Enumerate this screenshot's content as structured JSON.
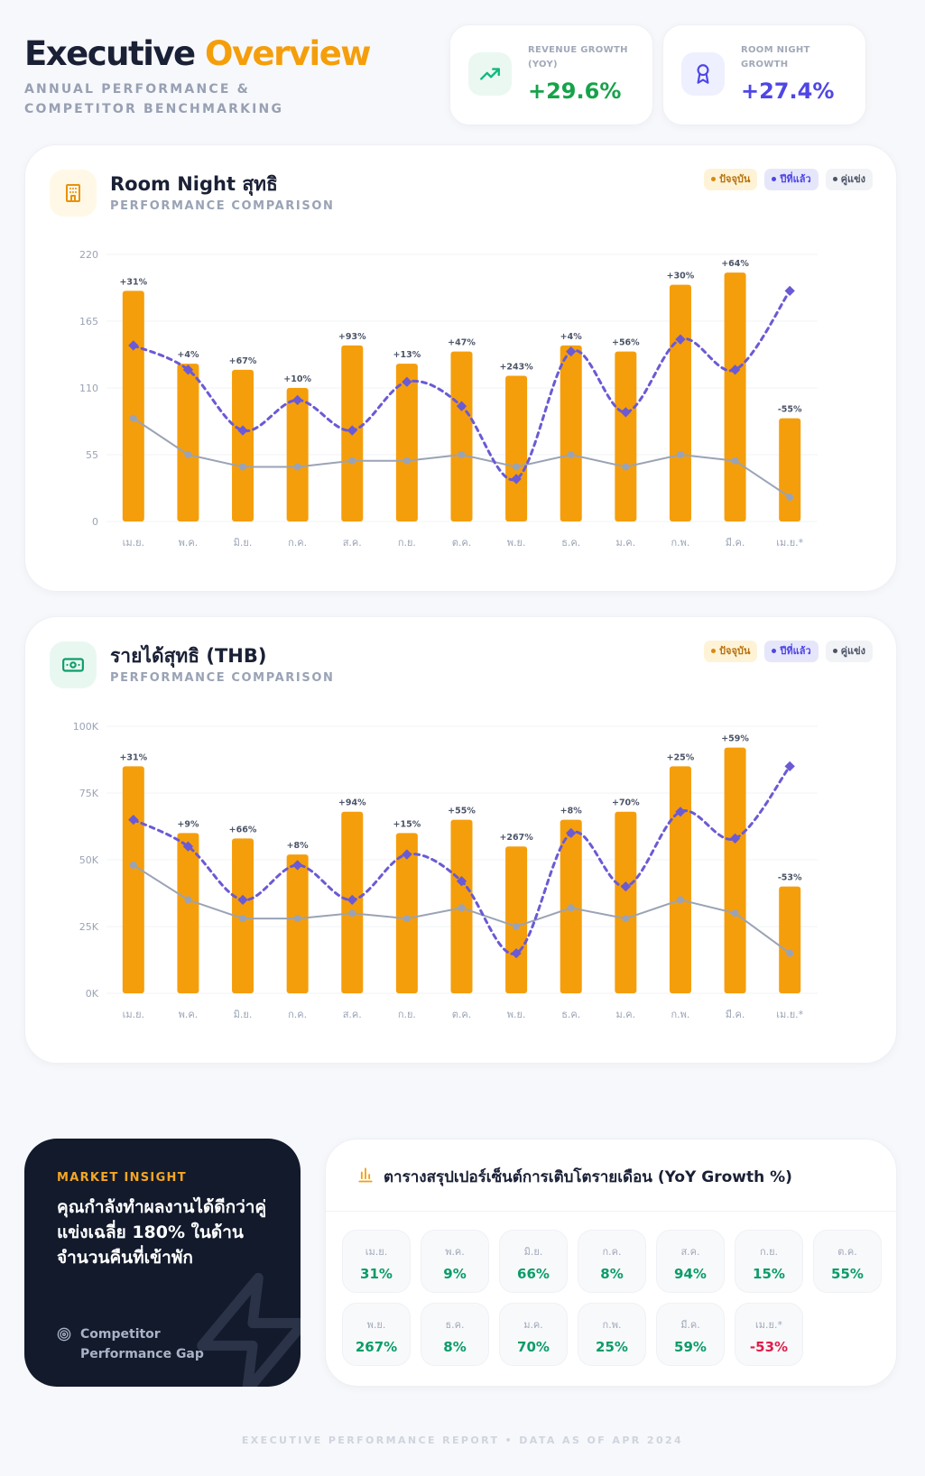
{
  "header": {
    "title_main": "Executive",
    "title_accent": "Overview",
    "subtitle": "ANNUAL PERFORMANCE & COMPETITOR BENCHMARKING"
  },
  "kpis": [
    {
      "label": "REVENUE GROWTH (YOY)",
      "value": "+29.6%",
      "color": "#16a34a",
      "icon": "trending-up-icon"
    },
    {
      "label": "ROOM NIGHT GROWTH",
      "value": "+27.4%",
      "color": "#4f46e5",
      "icon": "award-ribbon-icon"
    }
  ],
  "legend": {
    "current": "ปัจจุบัน",
    "last_year": "ปีที่แล้ว",
    "competitor": "คู่แข่ง"
  },
  "colors": {
    "current": "#f59e0b",
    "last_year": "#6a5ad5",
    "competitor": "#9aa3b5",
    "positive": "#0a9c68",
    "negative": "#e11d48"
  },
  "charts": [
    {
      "title": "Room Night สุทธิ",
      "subtitle": "PERFORMANCE COMPARISON",
      "icon": "building-icon"
    },
    {
      "title": "รายได้สุทธิ (THB)",
      "subtitle": "PERFORMANCE COMPARISON",
      "icon": "banknote-icon"
    }
  ],
  "chart_data": [
    {
      "type": "bar",
      "categories": [
        "เม.ย.",
        "พ.ค.",
        "มิ.ย.",
        "ก.ค.",
        "ส.ค.",
        "ก.ย.",
        "ต.ค.",
        "พ.ย.",
        "ธ.ค.",
        "ม.ค.",
        "ก.พ.",
        "มี.ค.",
        "เม.ย.*"
      ],
      "ylim": [
        0,
        220
      ],
      "yticks": [
        "0",
        "55",
        "110",
        "165",
        "220"
      ],
      "ytick_values": [
        0,
        55,
        110,
        165,
        220
      ],
      "series": [
        {
          "name": "ปัจจุบัน",
          "type": "bar",
          "values": [
            190,
            130,
            125,
            110,
            145,
            130,
            140,
            120,
            145,
            140,
            195,
            205,
            85
          ]
        },
        {
          "name": "ปีที่แล้ว",
          "type": "line",
          "style": "dashed",
          "values": [
            145,
            125,
            75,
            100,
            75,
            115,
            95,
            35,
            140,
            90,
            150,
            125,
            190
          ]
        },
        {
          "name": "คู่แข่ง",
          "type": "line",
          "values": [
            85,
            55,
            45,
            45,
            50,
            50,
            55,
            45,
            55,
            45,
            55,
            50,
            20
          ]
        }
      ],
      "data_labels": [
        "+31%",
        "+4%",
        "+67%",
        "+10%",
        "+93%",
        "+13%",
        "+47%",
        "+243%",
        "+4%",
        "+56%",
        "+30%",
        "+64%",
        "-55%"
      ],
      "grid": true,
      "legend_position": "top-right"
    },
    {
      "type": "bar",
      "categories": [
        "เม.ย.",
        "พ.ค.",
        "มิ.ย.",
        "ก.ค.",
        "ส.ค.",
        "ก.ย.",
        "ต.ค.",
        "พ.ย.",
        "ธ.ค.",
        "ม.ค.",
        "ก.พ.",
        "มี.ค.",
        "เม.ย.*"
      ],
      "ylim": [
        0,
        100000
      ],
      "yticks": [
        "0K",
        "25K",
        "50K",
        "75K",
        "100K"
      ],
      "ytick_values": [
        0,
        25000,
        50000,
        75000,
        100000
      ],
      "series": [
        {
          "name": "ปัจจุบัน",
          "type": "bar",
          "values": [
            85000,
            60000,
            58000,
            52000,
            68000,
            60000,
            65000,
            55000,
            65000,
            68000,
            85000,
            92000,
            40000
          ]
        },
        {
          "name": "ปีที่แล้ว",
          "type": "line",
          "style": "dashed",
          "values": [
            65000,
            55000,
            35000,
            48000,
            35000,
            52000,
            42000,
            15000,
            60000,
            40000,
            68000,
            58000,
            85000
          ]
        },
        {
          "name": "คู่แข่ง",
          "type": "line",
          "values": [
            48000,
            35000,
            28000,
            28000,
            30000,
            28000,
            32000,
            25000,
            32000,
            28000,
            35000,
            30000,
            15000
          ]
        }
      ],
      "data_labels": [
        "+31%",
        "+9%",
        "+66%",
        "+8%",
        "+94%",
        "+15%",
        "+55%",
        "+267%",
        "+8%",
        "+70%",
        "+25%",
        "+59%",
        "-53%"
      ],
      "grid": true,
      "legend_position": "top-right"
    }
  ],
  "insight": {
    "label": "MARKET INSIGHT",
    "text": "คุณกำลังทำผลงานได้ดีกว่าคู่แข่งเฉลี่ย 180% ในด้านจำนวนคืนที่เข้าพัก",
    "footer": "Competitor Performance Gap"
  },
  "summary": {
    "title": "ตารางสรุปเปอร์เซ็นต์การเติบโตรายเดือน (YoY Growth %)",
    "cells": [
      {
        "month": "เม.ย.",
        "value": "31%"
      },
      {
        "month": "พ.ค.",
        "value": "9%"
      },
      {
        "month": "มิ.ย.",
        "value": "66%"
      },
      {
        "month": "ก.ค.",
        "value": "8%"
      },
      {
        "month": "ส.ค.",
        "value": "94%"
      },
      {
        "month": "ก.ย.",
        "value": "15%"
      },
      {
        "month": "ต.ค.",
        "value": "55%"
      },
      {
        "month": "พ.ย.",
        "value": "267%"
      },
      {
        "month": "ธ.ค.",
        "value": "8%"
      },
      {
        "month": "ม.ค.",
        "value": "70%"
      },
      {
        "month": "ก.พ.",
        "value": "25%"
      },
      {
        "month": "มี.ค.",
        "value": "59%"
      },
      {
        "month": "เม.ย.*",
        "value": "-53%"
      }
    ]
  },
  "footer": "EXECUTIVE PERFORMANCE REPORT • DATA AS OF APR 2024"
}
